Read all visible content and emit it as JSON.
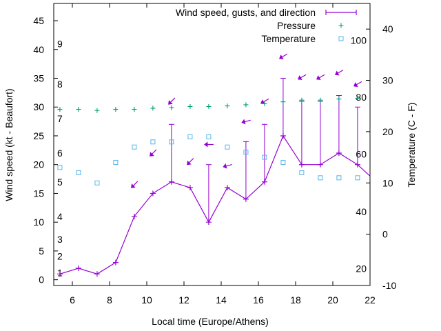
{
  "chart_data": {
    "type": "line",
    "title": "",
    "xlabel": "Local time (Europe/Athens)",
    "ylabel": "Wind speed (kt - Beaufort)",
    "y2label": "Temperature (C - F)",
    "xlim": [
      5,
      22
    ],
    "ylim": [
      -1,
      48
    ],
    "y2lim": [
      -10,
      45
    ],
    "x_ticks": [
      6,
      8,
      10,
      12,
      14,
      16,
      18,
      20,
      22
    ],
    "y_ticks": [
      0,
      5,
      10,
      15,
      20,
      25,
      30,
      35,
      40,
      45
    ],
    "y2_ticks": [
      -10,
      0,
      10,
      20,
      30,
      40
    ],
    "grid": false,
    "legend_position": "top-right",
    "beaufort_labels": [
      {
        "label": "1",
        "y": 1.2
      },
      {
        "label": "2",
        "y": 4.1
      },
      {
        "label": "3",
        "y": 7.0
      },
      {
        "label": "4",
        "y": 11.0
      },
      {
        "label": "5",
        "y": 17.0
      },
      {
        "label": "6",
        "y": 22.0
      },
      {
        "label": "7",
        "y": 28.0
      },
      {
        "label": "8",
        "y": 34.0
      },
      {
        "label": "9",
        "y": 41.0
      }
    ],
    "fahrenheit_labels": [
      {
        "label": "20",
        "y2": -6.7
      },
      {
        "label": "40",
        "y2": 4.4
      },
      {
        "label": "60",
        "y2": 15.6
      },
      {
        "label": "80",
        "y2": 26.7
      },
      {
        "label": "100",
        "y2": 37.8
      }
    ],
    "series": [
      {
        "name": "Wind speed, gusts, and direction",
        "color": "#9400d3",
        "x": [
          5.33,
          6.33,
          7.33,
          8.33,
          9.33,
          10.33,
          11.33,
          12.33,
          13.33,
          14.33,
          15.33,
          16.33,
          17.33,
          18.33,
          19.33,
          20.33,
          21.33,
          22.0
        ],
        "speed": [
          1,
          2,
          1,
          3,
          11,
          15,
          17,
          16,
          10,
          16,
          14,
          17,
          25,
          20,
          20,
          22,
          20,
          18
        ],
        "gust": [
          1,
          null,
          null,
          null,
          null,
          null,
          27,
          null,
          20,
          null,
          24,
          27,
          35,
          31,
          31,
          32,
          30,
          null
        ]
      },
      {
        "name": "Pressure",
        "color": "#009e73",
        "x": [
          5.33,
          6.33,
          7.33,
          8.33,
          9.33,
          10.33,
          11.33,
          12.33,
          13.33,
          14.33,
          15.33,
          16.33,
          17.33,
          18.33,
          19.33,
          20.33,
          21.33
        ],
        "values": [
          29.6,
          29.6,
          29.4,
          29.6,
          29.6,
          29.8,
          29.9,
          30.1,
          30.1,
          30.2,
          30.4,
          30.6,
          30.9,
          31.2,
          31.2,
          31.4,
          31.5
        ]
      },
      {
        "name": "Temperature",
        "color": "#56b4e9",
        "x": [
          5.33,
          6.33,
          7.33,
          8.33,
          9.33,
          10.33,
          11.33,
          12.33,
          13.33,
          14.33,
          15.33,
          16.33,
          17.33,
          18.33,
          19.33,
          20.33,
          21.33
        ],
        "values": [
          13,
          12,
          10,
          14,
          17,
          18,
          18,
          19,
          19,
          17,
          16,
          15,
          14,
          12,
          11,
          11,
          11
        ]
      }
    ],
    "wind_direction_arrows": [
      {
        "x": 9.33,
        "y": 16.5,
        "angle_deg": 225
      },
      {
        "x": 10.33,
        "y": 22.0,
        "angle_deg": 225
      },
      {
        "x": 11.33,
        "y": 31.0,
        "angle_deg": 225
      },
      {
        "x": 12.33,
        "y": 20.5,
        "angle_deg": 225
      },
      {
        "x": 13.33,
        "y": 23.5,
        "angle_deg": 270
      },
      {
        "x": 14.33,
        "y": 19.8,
        "angle_deg": 255
      },
      {
        "x": 15.33,
        "y": 27.5,
        "angle_deg": 255
      },
      {
        "x": 16.33,
        "y": 31.0,
        "angle_deg": 240
      },
      {
        "x": 17.33,
        "y": 38.8,
        "angle_deg": 240
      },
      {
        "x": 18.33,
        "y": 35.2,
        "angle_deg": 240
      },
      {
        "x": 19.33,
        "y": 35.2,
        "angle_deg": 240
      },
      {
        "x": 20.33,
        "y": 36.0,
        "angle_deg": 240
      },
      {
        "x": 21.33,
        "y": 34.0,
        "angle_deg": 240
      }
    ]
  }
}
